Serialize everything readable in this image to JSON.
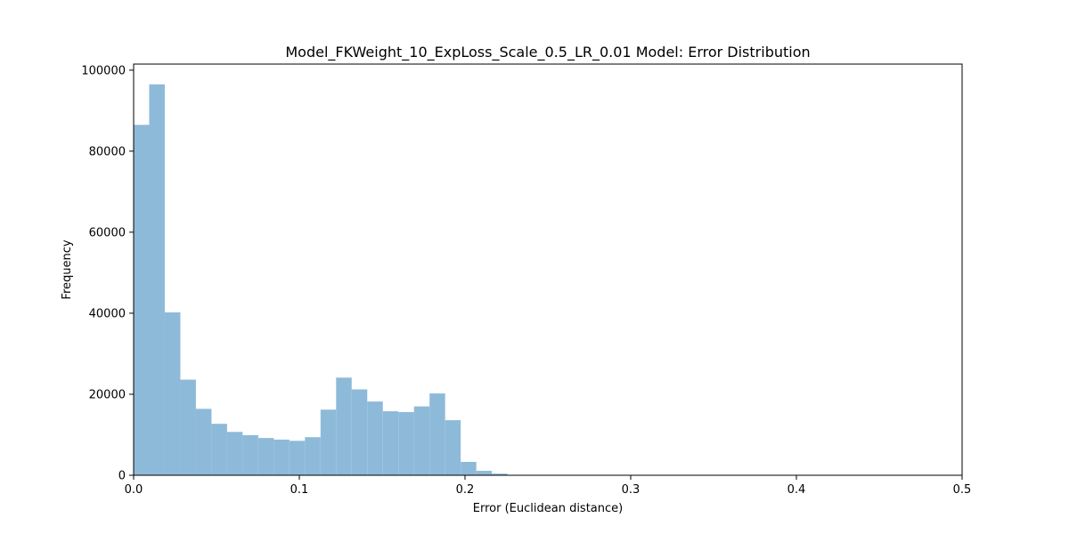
{
  "chart_data": {
    "type": "bar",
    "title": "Model_FKWeight_10_ExpLoss_Scale_0.5_LR_0.01 Model: Error Distribution",
    "xlabel": "Error (Euclidean distance)",
    "ylabel": "Frequency",
    "xlim": [
      0,
      0.5
    ],
    "ylim": [
      0,
      101500
    ],
    "grid": false,
    "bar_color": "#8ebad9",
    "bin_width": 0.0094,
    "bins": [
      {
        "x": 0.0,
        "value": 86500
      },
      {
        "x": 0.0094,
        "value": 96500
      },
      {
        "x": 0.0188,
        "value": 40200
      },
      {
        "x": 0.0282,
        "value": 23600
      },
      {
        "x": 0.0376,
        "value": 16400
      },
      {
        "x": 0.047,
        "value": 12700
      },
      {
        "x": 0.0564,
        "value": 10700
      },
      {
        "x": 0.0658,
        "value": 9900
      },
      {
        "x": 0.0752,
        "value": 9200
      },
      {
        "x": 0.0846,
        "value": 8800
      },
      {
        "x": 0.094,
        "value": 8500
      },
      {
        "x": 0.1034,
        "value": 9400
      },
      {
        "x": 0.1128,
        "value": 16200
      },
      {
        "x": 0.1222,
        "value": 24100
      },
      {
        "x": 0.1316,
        "value": 21200
      },
      {
        "x": 0.141,
        "value": 18200
      },
      {
        "x": 0.1504,
        "value": 15800
      },
      {
        "x": 0.1598,
        "value": 15600
      },
      {
        "x": 0.1692,
        "value": 17000
      },
      {
        "x": 0.1786,
        "value": 20200
      },
      {
        "x": 0.188,
        "value": 13600
      },
      {
        "x": 0.1974,
        "value": 3300
      },
      {
        "x": 0.2068,
        "value": 1100
      },
      {
        "x": 0.2162,
        "value": 400
      },
      {
        "x": 0.2256,
        "value": 100
      },
      {
        "x": 0.235,
        "value": 30
      },
      {
        "x": 0.2444,
        "value": 10
      }
    ],
    "x_ticks": [
      {
        "value": 0.0,
        "label": "0.0"
      },
      {
        "value": 0.1,
        "label": "0.1"
      },
      {
        "value": 0.2,
        "label": "0.2"
      },
      {
        "value": 0.3,
        "label": "0.3"
      },
      {
        "value": 0.4,
        "label": "0.4"
      },
      {
        "value": 0.5,
        "label": "0.5"
      }
    ],
    "y_ticks": [
      {
        "value": 0,
        "label": "0"
      },
      {
        "value": 20000,
        "label": "20000"
      },
      {
        "value": 40000,
        "label": "40000"
      },
      {
        "value": 60000,
        "label": "60000"
      },
      {
        "value": 80000,
        "label": "80000"
      },
      {
        "value": 100000,
        "label": "100000"
      }
    ]
  }
}
